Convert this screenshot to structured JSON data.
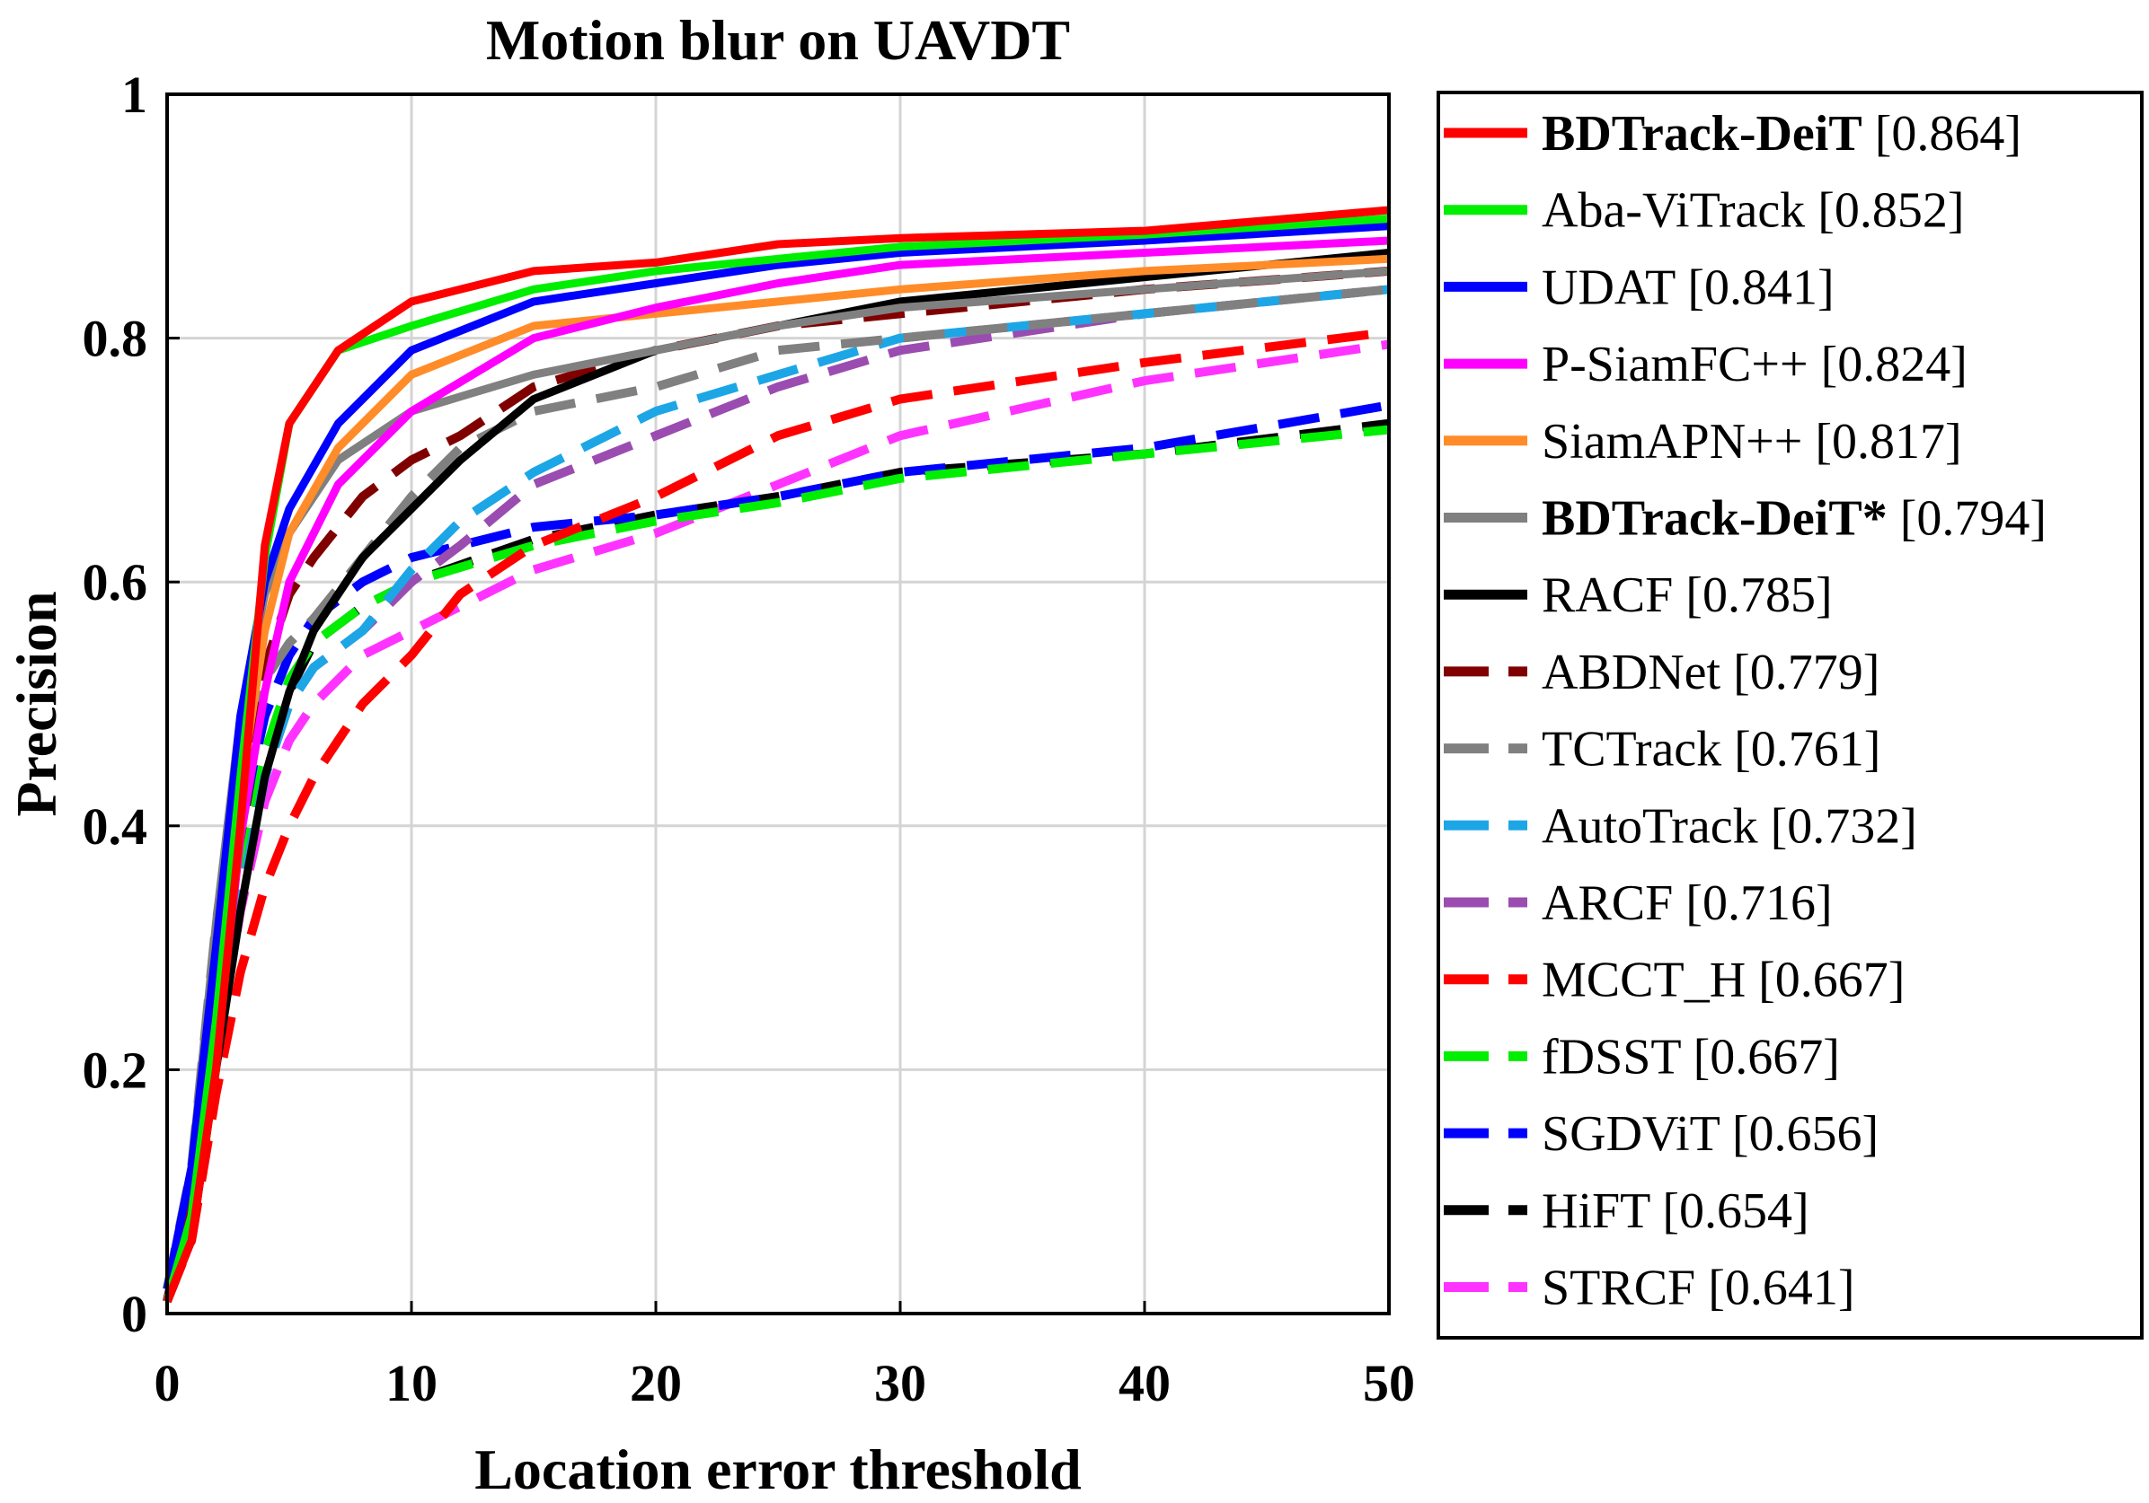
{
  "chart_data": {
    "type": "line",
    "title": "Motion blur on UAVDT",
    "xlabel": "Location error threshold",
    "ylabel": "Precision",
    "xlim": [
      0,
      50
    ],
    "ylim": [
      0,
      1
    ],
    "xticks": [
      0,
      10,
      20,
      30,
      40,
      50
    ],
    "xtick_labels": [
      "0",
      "10",
      "20",
      "30",
      "40",
      "50"
    ],
    "yticks": [
      0,
      0.2,
      0.4,
      0.6,
      0.8,
      1
    ],
    "ytick_labels": [
      "0",
      "0.2",
      "0.4",
      "0.6",
      "0.8",
      "1"
    ],
    "grid": true,
    "legend_position": "right-outside",
    "series": [
      {
        "name": "BDTrack-DeiT",
        "score": "[0.864]",
        "bold": true,
        "color": "#ff0000",
        "style": "solid",
        "x": [
          0,
          1,
          2,
          3,
          4,
          5,
          7,
          10,
          15,
          20,
          25,
          30,
          40,
          50
        ],
        "y": [
          0.01,
          0.06,
          0.2,
          0.4,
          0.63,
          0.73,
          0.79,
          0.83,
          0.855,
          0.862,
          0.877,
          0.882,
          0.888,
          0.905
        ]
      },
      {
        "name": "Aba-ViTrack",
        "score": "[0.852]",
        "bold": false,
        "color": "#00ee00",
        "style": "solid",
        "x": [
          0,
          1,
          2,
          3,
          4,
          5,
          7,
          10,
          15,
          20,
          25,
          30,
          40,
          50
        ],
        "y": [
          0.01,
          0.08,
          0.24,
          0.44,
          0.62,
          0.73,
          0.79,
          0.81,
          0.84,
          0.855,
          0.865,
          0.875,
          0.885,
          0.898
        ]
      },
      {
        "name": "UDAT",
        "score": "[0.841]",
        "bold": false,
        "color": "#0000ff",
        "style": "solid",
        "x": [
          0,
          1,
          2,
          3,
          4,
          5,
          7,
          10,
          15,
          20,
          25,
          30,
          40,
          50
        ],
        "y": [
          0.02,
          0.12,
          0.3,
          0.49,
          0.6,
          0.66,
          0.73,
          0.79,
          0.83,
          0.845,
          0.86,
          0.87,
          0.88,
          0.892
        ]
      },
      {
        "name": "P-SiamFC++",
        "score": "[0.824]",
        "bold": false,
        "color": "#ff00ff",
        "style": "solid",
        "x": [
          0,
          1,
          2,
          3,
          4,
          5,
          7,
          10,
          15,
          20,
          25,
          30,
          40,
          50
        ],
        "y": [
          0.01,
          0.07,
          0.21,
          0.39,
          0.51,
          0.6,
          0.68,
          0.74,
          0.8,
          0.825,
          0.845,
          0.86,
          0.87,
          0.88
        ]
      },
      {
        "name": "SiamAPN++",
        "score": "[0.817]",
        "bold": false,
        "color": "#ff8c28",
        "style": "solid",
        "x": [
          0,
          1,
          2,
          3,
          4,
          5,
          7,
          10,
          15,
          20,
          25,
          30,
          40,
          50
        ],
        "y": [
          0.01,
          0.08,
          0.24,
          0.43,
          0.56,
          0.64,
          0.71,
          0.77,
          0.81,
          0.82,
          0.83,
          0.84,
          0.855,
          0.865
        ]
      },
      {
        "name": "BDTrack-DeiT*",
        "score": "[0.794]",
        "bold": true,
        "color": "#808080",
        "style": "solid",
        "x": [
          0,
          1,
          2,
          3,
          4,
          5,
          7,
          10,
          15,
          20,
          25,
          30,
          40,
          50
        ],
        "y": [
          0.02,
          0.12,
          0.32,
          0.49,
          0.59,
          0.64,
          0.7,
          0.74,
          0.77,
          0.79,
          0.81,
          0.825,
          0.84,
          0.855
        ]
      },
      {
        "name": "RACF",
        "score": "[0.785]",
        "bold": false,
        "color": "#000000",
        "style": "solid",
        "x": [
          0,
          1,
          2,
          3,
          4,
          5,
          6,
          8,
          10,
          12,
          15,
          20,
          25,
          30,
          40,
          50
        ],
        "y": [
          0.01,
          0.06,
          0.2,
          0.33,
          0.44,
          0.51,
          0.56,
          0.62,
          0.66,
          0.7,
          0.75,
          0.79,
          0.81,
          0.83,
          0.85,
          0.87
        ]
      },
      {
        "name": "ABDNet",
        "score": "[0.779]",
        "bold": false,
        "color": "#800000",
        "style": "dashed",
        "x": [
          0,
          1,
          2,
          3,
          4,
          5,
          6,
          8,
          10,
          12,
          15,
          20,
          25,
          30,
          40,
          50
        ],
        "y": [
          0.01,
          0.1,
          0.27,
          0.43,
          0.53,
          0.59,
          0.62,
          0.67,
          0.7,
          0.72,
          0.76,
          0.79,
          0.81,
          0.82,
          0.84,
          0.855
        ]
      },
      {
        "name": "TCTrack",
        "score": "[0.761]",
        "bold": false,
        "color": "#808080",
        "style": "dashed",
        "x": [
          0,
          1,
          2,
          3,
          4,
          5,
          6,
          8,
          10,
          12,
          15,
          20,
          25,
          30,
          40,
          50
        ],
        "y": [
          0.02,
          0.12,
          0.32,
          0.46,
          0.52,
          0.55,
          0.57,
          0.62,
          0.67,
          0.71,
          0.74,
          0.76,
          0.79,
          0.8,
          0.82,
          0.84
        ]
      },
      {
        "name": "AutoTrack",
        "score": "[0.732]",
        "bold": false,
        "color": "#1ca6e6",
        "style": "dashed",
        "x": [
          0,
          1,
          2,
          3,
          4,
          5,
          6,
          8,
          10,
          12,
          15,
          20,
          25,
          30,
          40,
          50
        ],
        "y": [
          0.01,
          0.08,
          0.22,
          0.34,
          0.44,
          0.5,
          0.53,
          0.56,
          0.61,
          0.65,
          0.69,
          0.74,
          0.77,
          0.8,
          0.82,
          0.84
        ]
      },
      {
        "name": "ARCF",
        "score": "[0.716]",
        "bold": false,
        "color": "#9a4cb0",
        "style": "dashed",
        "x": [
          0,
          1,
          2,
          3,
          4,
          5,
          6,
          8,
          10,
          12,
          15,
          20,
          25,
          30,
          40,
          50
        ],
        "y": [
          0.01,
          0.08,
          0.22,
          0.34,
          0.44,
          0.5,
          0.53,
          0.56,
          0.6,
          0.63,
          0.68,
          0.72,
          0.76,
          0.79,
          0.82,
          0.84
        ]
      },
      {
        "name": "MCCT_H",
        "score": "[0.667]",
        "bold": false,
        "color": "#ff0000",
        "style": "dashed",
        "x": [
          0,
          1,
          2,
          3,
          4,
          5,
          6,
          7,
          8,
          10,
          12,
          15,
          20,
          25,
          30,
          40,
          50
        ],
        "y": [
          0.01,
          0.06,
          0.18,
          0.28,
          0.35,
          0.4,
          0.44,
          0.47,
          0.5,
          0.54,
          0.59,
          0.63,
          0.67,
          0.72,
          0.75,
          0.78,
          0.805
        ]
      },
      {
        "name": "fDSST",
        "score": "[0.667]",
        "bold": false,
        "color": "#00ee00",
        "style": "dashed",
        "x": [
          0,
          1,
          2,
          3,
          4,
          5,
          6,
          8,
          10,
          15,
          20,
          25,
          30,
          40,
          50
        ],
        "y": [
          0.01,
          0.08,
          0.22,
          0.35,
          0.46,
          0.52,
          0.55,
          0.58,
          0.6,
          0.63,
          0.65,
          0.665,
          0.685,
          0.705,
          0.725
        ]
      },
      {
        "name": "SGDViT",
        "score": "[0.656]",
        "bold": false,
        "color": "#0000ff",
        "style": "dashed",
        "x": [
          0,
          1,
          2,
          3,
          4,
          5,
          6,
          8,
          10,
          15,
          20,
          25,
          30,
          40,
          50
        ],
        "y": [
          0.01,
          0.1,
          0.26,
          0.4,
          0.49,
          0.54,
          0.57,
          0.6,
          0.62,
          0.645,
          0.655,
          0.67,
          0.69,
          0.71,
          0.745
        ]
      },
      {
        "name": "HiFT",
        "score": "[0.654]",
        "bold": false,
        "color": "#000000",
        "style": "dashed",
        "x": [
          0,
          1,
          2,
          3,
          4,
          5,
          6,
          8,
          10,
          15,
          20,
          25,
          30,
          40,
          50
        ],
        "y": [
          0.01,
          0.09,
          0.24,
          0.38,
          0.46,
          0.51,
          0.55,
          0.58,
          0.6,
          0.635,
          0.655,
          0.67,
          0.69,
          0.705,
          0.73
        ]
      },
      {
        "name": "STRCF",
        "score": "[0.641]",
        "bold": false,
        "color": "#ff33ff",
        "style": "dashed",
        "x": [
          0,
          1,
          2,
          3,
          4,
          5,
          6,
          7,
          8,
          10,
          12,
          15,
          20,
          25,
          30,
          40,
          50
        ],
        "y": [
          0.01,
          0.08,
          0.21,
          0.33,
          0.42,
          0.47,
          0.5,
          0.52,
          0.54,
          0.56,
          0.58,
          0.61,
          0.64,
          0.68,
          0.72,
          0.765,
          0.795
        ]
      }
    ]
  }
}
